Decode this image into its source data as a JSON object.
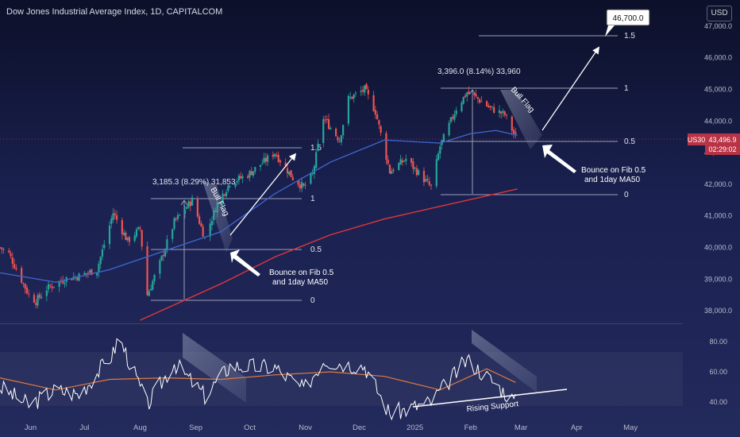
{
  "header": {
    "title": "Dow Jones Industrial Average Index, 1D, CAPITALCOM",
    "currency_button": "USD"
  },
  "colors": {
    "up": "#26a69a",
    "down": "#ef5350",
    "ma50": "#3e63c8",
    "ma200": "#e0363a",
    "rsi": "#ffffff",
    "rsi_ma": "#e07a3f",
    "price_tag": "#b93346"
  },
  "price_badge": {
    "symbol": "US30",
    "price": "43,496.9",
    "countdown": "02:29:02"
  },
  "annotations": {
    "fib1": {
      "measure": "3,185.3 (8.29%) 31,853",
      "levels": [
        "1.5",
        "1",
        "0.5",
        "0"
      ],
      "pattern": "Bull Flag",
      "note_line1": "Bounce on Fib 0.5",
      "note_line2": "and 1day MA50"
    },
    "fib2": {
      "measure": "3,396.0 (8.14%) 33,960",
      "levels": [
        "1.5",
        "1",
        "0.5",
        "0"
      ],
      "pattern": "Bull Flag",
      "note_line1": "Bounce on Fib 0.5",
      "note_line2": "and 1day MA50"
    },
    "target": "46,700.0",
    "rsi_note": "Rising Support"
  },
  "chart_data": {
    "type": "candlestick",
    "title": "Dow Jones Industrial Average Index, 1D, CAPITALCOM",
    "y_axis": {
      "ticks": [
        "47,000.0",
        "46,000.0",
        "45,000.0",
        "44,000.0",
        "43,000.0",
        "42,000.0",
        "41,000.0",
        "40,000.0",
        "39,000.0",
        "38,000.0"
      ],
      "ylim": [
        37700,
        47600
      ]
    },
    "x_axis": {
      "labels": [
        "Jun",
        "Jul",
        "Aug",
        "Sep",
        "Oct",
        "Nov",
        "Dec",
        "2025",
        "Feb",
        "Mar",
        "Apr",
        "May"
      ],
      "range": [
        "2024-05-15",
        "2025-05-31"
      ]
    },
    "close_path": [
      [
        "2024-05-15",
        40000
      ],
      [
        "2024-05-20",
        39800
      ],
      [
        "2024-05-31",
        38500
      ],
      [
        "2024-06-04",
        38300
      ],
      [
        "2024-06-10",
        38700
      ],
      [
        "2024-06-20",
        39000
      ],
      [
        "2024-06-28",
        39100
      ],
      [
        "2024-07-08",
        39300
      ],
      [
        "2024-07-17",
        41100
      ],
      [
        "2024-07-25",
        40200
      ],
      [
        "2024-08-01",
        40600
      ],
      [
        "2024-08-05",
        38500
      ],
      [
        "2024-08-12",
        39500
      ],
      [
        "2024-08-20",
        40800
      ],
      [
        "2024-08-30",
        41500
      ],
      [
        "2024-09-06",
        40300
      ],
      [
        "2024-09-13",
        41400
      ],
      [
        "2024-09-20",
        42050
      ],
      [
        "2024-09-30",
        42300
      ],
      [
        "2024-10-15",
        43000
      ],
      [
        "2024-10-25",
        42200
      ],
      [
        "2024-10-31",
        41900
      ],
      [
        "2024-11-05",
        42300
      ],
      [
        "2024-11-11",
        44100
      ],
      [
        "2024-11-20",
        43400
      ],
      [
        "2024-11-25",
        44700
      ],
      [
        "2024-12-04",
        45000
      ],
      [
        "2024-12-10",
        44300
      ],
      [
        "2024-12-18",
        42400
      ],
      [
        "2024-12-27",
        42800
      ],
      [
        "2025-01-10",
        41900
      ],
      [
        "2025-01-15",
        43200
      ],
      [
        "2025-01-24",
        44400
      ],
      [
        "2025-01-30",
        44900
      ],
      [
        "2025-02-05",
        44700
      ],
      [
        "2025-02-12",
        44400
      ],
      [
        "2025-02-20",
        44200
      ],
      [
        "2025-02-26",
        43500
      ]
    ],
    "ma50": [
      [
        "2024-05-15",
        39200
      ],
      [
        "2024-06-15",
        38900
      ],
      [
        "2024-07-15",
        39300
      ],
      [
        "2024-08-15",
        39900
      ],
      [
        "2024-09-15",
        40500
      ],
      [
        "2024-10-15",
        41700
      ],
      [
        "2024-11-15",
        42700
      ],
      [
        "2024-12-15",
        43400
      ],
      [
        "2025-01-15",
        43300
      ],
      [
        "2025-02-01",
        43600
      ],
      [
        "2025-02-15",
        43700
      ],
      [
        "2025-02-27",
        43550
      ]
    ],
    "ma200": [
      [
        "2024-08-01",
        37700
      ],
      [
        "2024-09-15",
        38850
      ],
      [
        "2024-10-15",
        39700
      ],
      [
        "2024-11-15",
        40400
      ],
      [
        "2024-12-15",
        40900
      ],
      [
        "2025-01-15",
        41300
      ],
      [
        "2025-02-27",
        41850
      ]
    ],
    "rsi": {
      "ticks": [
        "80.00",
        "60.00",
        "40.00"
      ],
      "ylim": [
        30,
        90
      ],
      "values": [
        [
          "2024-05-15",
          50
        ],
        [
          "2024-05-31",
          38
        ],
        [
          "2024-06-15",
          48
        ],
        [
          "2024-06-28",
          45
        ],
        [
          "2024-07-17",
          72
        ],
        [
          "2024-07-20",
          84
        ],
        [
          "2024-08-05",
          38
        ],
        [
          "2024-08-20",
          66
        ],
        [
          "2024-09-06",
          44
        ],
        [
          "2024-09-20",
          64
        ],
        [
          "2024-10-15",
          63
        ],
        [
          "2024-10-31",
          48
        ],
        [
          "2024-11-11",
          68
        ],
        [
          "2024-11-25",
          65
        ],
        [
          "2024-12-04",
          64
        ],
        [
          "2024-12-18",
          32
        ],
        [
          "2025-01-10",
          40
        ],
        [
          "2025-01-30",
          68
        ],
        [
          "2025-02-12",
          55
        ],
        [
          "2025-02-26",
          40
        ]
      ],
      "ma": [
        [
          "2024-05-15",
          56
        ],
        [
          "2024-06-15",
          48
        ],
        [
          "2024-07-15",
          55
        ],
        [
          "2024-08-15",
          56
        ],
        [
          "2024-09-15",
          55
        ],
        [
          "2024-10-15",
          58
        ],
        [
          "2024-11-15",
          60
        ],
        [
          "2024-12-15",
          57
        ],
        [
          "2025-01-15",
          48
        ],
        [
          "2025-02-10",
          62
        ],
        [
          "2025-02-26",
          53
        ]
      ]
    }
  }
}
